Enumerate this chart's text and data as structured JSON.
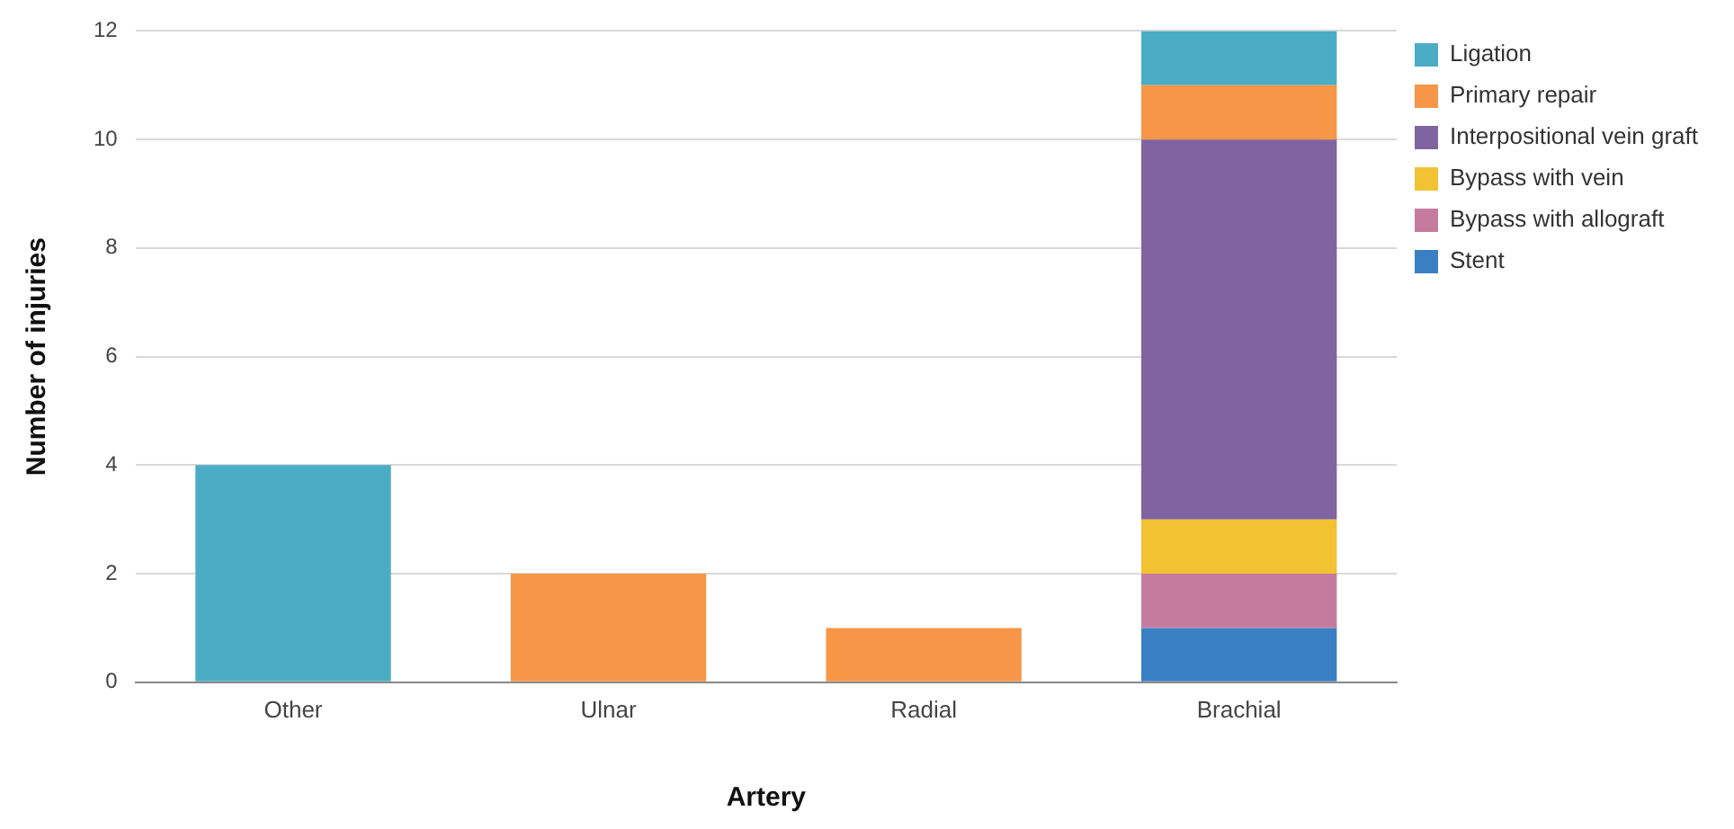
{
  "chart_data": {
    "type": "bar",
    "stacked": true,
    "xlabel": "Artery",
    "ylabel": "Number of injuries",
    "categories": [
      "Other",
      "Ulnar",
      "Radial",
      "Brachial"
    ],
    "series": [
      {
        "name": "Stent",
        "color": "#3a7fc4",
        "values": [
          null,
          null,
          null,
          1
        ]
      },
      {
        "name": "Bypass with allograft",
        "color": "#c57b9e",
        "values": [
          null,
          null,
          null,
          1
        ]
      },
      {
        "name": "Bypass with vein",
        "color": "#f1c232",
        "values": [
          null,
          null,
          null,
          1
        ]
      },
      {
        "name": "Interpositional vein graft",
        "color": "#8064a2",
        "values": [
          null,
          null,
          null,
          7
        ]
      },
      {
        "name": "Primary repair",
        "color": "#f79646",
        "values": [
          null,
          2,
          1,
          1
        ]
      },
      {
        "name": "Ligation",
        "color": "#4bacc6",
        "values": [
          4,
          null,
          null,
          1
        ]
      }
    ],
    "ylim": [
      0,
      12
    ],
    "yticks": [
      0,
      2,
      4,
      6,
      8,
      10,
      12
    ],
    "grid": "y",
    "legend": "top right"
  }
}
